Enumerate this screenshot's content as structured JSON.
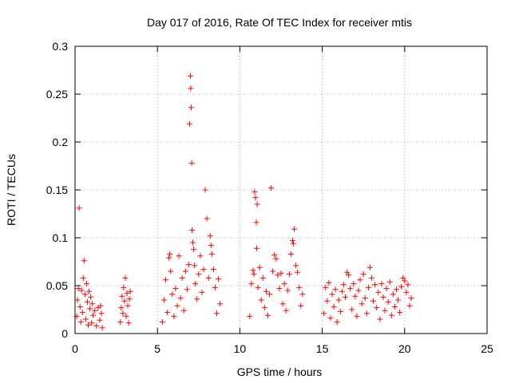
{
  "chart_data": {
    "type": "scatter",
    "title": "Day 017 of 2016, Rate Of TEC Index for receiver mtis",
    "xlabel": "GPS time / hours",
    "ylabel": "ROTI / TECUs",
    "xlim": [
      0,
      25
    ],
    "ylim": [
      0,
      0.3
    ],
    "x_ticks": [
      0,
      5,
      10,
      15,
      20,
      25
    ],
    "x_tick_labels": [
      "0",
      "5",
      "10",
      "15",
      "20",
      "25"
    ],
    "y_ticks": [
      0,
      0.05,
      0.1,
      0.15,
      0.2,
      0.25,
      0.3
    ],
    "y_tick_labels": [
      "0",
      "0.05",
      "0.1",
      "0.15",
      "0.2",
      "0.25",
      "0.3"
    ],
    "grid": true,
    "marker": "+",
    "marker_color": "#ff0000",
    "series": [
      {
        "name": "ROTI",
        "color": "#ff0000",
        "points": [
          [
            0.1,
            0.018
          ],
          [
            0.15,
            0.035
          ],
          [
            0.2,
            0.047
          ],
          [
            0.25,
            0.131
          ],
          [
            0.3,
            0.028
          ],
          [
            0.35,
            0.012
          ],
          [
            0.4,
            0.045
          ],
          [
            0.45,
            0.022
          ],
          [
            0.5,
            0.058
          ],
          [
            0.55,
            0.076
          ],
          [
            0.6,
            0.041
          ],
          [
            0.65,
            0.015
          ],
          [
            0.7,
            0.052
          ],
          [
            0.75,
            0.033
          ],
          [
            0.8,
            0.009
          ],
          [
            0.85,
            0.044
          ],
          [
            0.9,
            0.026
          ],
          [
            0.95,
            0.038
          ],
          [
            1.0,
            0.011
          ],
          [
            1.05,
            0.031
          ],
          [
            1.1,
            0.019
          ],
          [
            1.2,
            0.024
          ],
          [
            1.3,
            0.008
          ],
          [
            1.4,
            0.027
          ],
          [
            1.5,
            0.014
          ],
          [
            1.55,
            0.029
          ],
          [
            1.6,
            0.021
          ],
          [
            1.65,
            0.006
          ],
          [
            2.75,
            0.012
          ],
          [
            2.8,
            0.027
          ],
          [
            2.85,
            0.039
          ],
          [
            2.9,
            0.021
          ],
          [
            2.95,
            0.048
          ],
          [
            3.0,
            0.034
          ],
          [
            3.05,
            0.058
          ],
          [
            3.1,
            0.018
          ],
          [
            3.15,
            0.042
          ],
          [
            3.2,
            0.029
          ],
          [
            3.25,
            0.011
          ],
          [
            3.3,
            0.036
          ],
          [
            3.35,
            0.044
          ],
          [
            5.3,
            0.012
          ],
          [
            5.4,
            0.035
          ],
          [
            5.5,
            0.056
          ],
          [
            5.6,
            0.022
          ],
          [
            5.7,
            0.079
          ],
          [
            5.75,
            0.083
          ],
          [
            5.8,
            0.065
          ],
          [
            5.9,
            0.041
          ],
          [
            6.0,
            0.018
          ],
          [
            6.1,
            0.047
          ],
          [
            6.2,
            0.029
          ],
          [
            6.3,
            0.081
          ],
          [
            6.4,
            0.037
          ],
          [
            6.5,
            0.058
          ],
          [
            6.6,
            0.024
          ],
          [
            6.7,
            0.065
          ],
          [
            6.8,
            0.046
          ],
          [
            6.9,
            0.072
          ],
          [
            6.95,
            0.219
          ],
          [
            7.0,
            0.269
          ],
          [
            7.02,
            0.256
          ],
          [
            7.05,
            0.236
          ],
          [
            7.08,
            0.178
          ],
          [
            7.1,
            0.108
          ],
          [
            7.15,
            0.095
          ],
          [
            7.2,
            0.088
          ],
          [
            7.25,
            0.071
          ],
          [
            7.3,
            0.052
          ],
          [
            7.4,
            0.036
          ],
          [
            7.5,
            0.062
          ],
          [
            7.6,
            0.081
          ],
          [
            7.7,
            0.043
          ],
          [
            7.8,
            0.067
          ],
          [
            7.9,
            0.15
          ],
          [
            8.0,
            0.12
          ],
          [
            8.1,
            0.058
          ],
          [
            8.2,
            0.102
          ],
          [
            8.25,
            0.092
          ],
          [
            8.3,
            0.083
          ],
          [
            8.4,
            0.067
          ],
          [
            8.5,
            0.048
          ],
          [
            8.6,
            0.021
          ],
          [
            8.7,
            0.057
          ],
          [
            8.8,
            0.031
          ],
          [
            10.6,
            0.018
          ],
          [
            10.7,
            0.052
          ],
          [
            10.8,
            0.066
          ],
          [
            10.85,
            0.062
          ],
          [
            10.9,
            0.148
          ],
          [
            10.95,
            0.142
          ],
          [
            11.0,
            0.116
          ],
          [
            11.02,
            0.089
          ],
          [
            11.05,
            0.135
          ],
          [
            11.1,
            0.048
          ],
          [
            11.2,
            0.069
          ],
          [
            11.3,
            0.035
          ],
          [
            11.4,
            0.058
          ],
          [
            11.5,
            0.027
          ],
          [
            11.6,
            0.044
          ],
          [
            11.7,
            0.019
          ],
          [
            11.8,
            0.041
          ],
          [
            11.9,
            0.152
          ],
          [
            12.0,
            0.065
          ],
          [
            12.1,
            0.082
          ],
          [
            12.2,
            0.078
          ],
          [
            12.3,
            0.061
          ],
          [
            12.4,
            0.047
          ],
          [
            12.5,
            0.063
          ],
          [
            12.6,
            0.031
          ],
          [
            12.7,
            0.052
          ],
          [
            12.8,
            0.024
          ],
          [
            12.9,
            0.045
          ],
          [
            13.0,
            0.062
          ],
          [
            13.1,
            0.083
          ],
          [
            13.2,
            0.097
          ],
          [
            13.25,
            0.094
          ],
          [
            13.3,
            0.109
          ],
          [
            13.4,
            0.071
          ],
          [
            13.5,
            0.064
          ],
          [
            13.6,
            0.048
          ],
          [
            13.7,
            0.029
          ],
          [
            13.8,
            0.041
          ],
          [
            15.1,
            0.021
          ],
          [
            15.2,
            0.048
          ],
          [
            15.3,
            0.034
          ],
          [
            15.4,
            0.053
          ],
          [
            15.5,
            0.016
          ],
          [
            15.6,
            0.041
          ],
          [
            15.7,
            0.028
          ],
          [
            15.8,
            0.046
          ],
          [
            15.9,
            0.012
          ],
          [
            16.0,
            0.035
          ],
          [
            16.1,
            0.023
          ],
          [
            16.2,
            0.044
          ],
          [
            16.3,
            0.051
          ],
          [
            16.4,
            0.038
          ],
          [
            16.5,
            0.064
          ],
          [
            16.6,
            0.061
          ],
          [
            16.7,
            0.047
          ],
          [
            16.8,
            0.025
          ],
          [
            16.9,
            0.052
          ],
          [
            17.0,
            0.039
          ],
          [
            17.1,
            0.018
          ],
          [
            17.2,
            0.045
          ],
          [
            17.3,
            0.056
          ],
          [
            17.4,
            0.031
          ],
          [
            17.5,
            0.062
          ],
          [
            17.6,
            0.037
          ],
          [
            17.7,
            0.021
          ],
          [
            17.8,
            0.048
          ],
          [
            17.9,
            0.069
          ],
          [
            18.0,
            0.058
          ],
          [
            18.1,
            0.034
          ],
          [
            18.2,
            0.051
          ],
          [
            18.3,
            0.027
          ],
          [
            18.4,
            0.043
          ],
          [
            18.5,
            0.015
          ],
          [
            18.6,
            0.052
          ],
          [
            18.7,
            0.038
          ],
          [
            18.8,
            0.024
          ],
          [
            18.9,
            0.047
          ],
          [
            19.0,
            0.033
          ],
          [
            19.1,
            0.054
          ],
          [
            19.2,
            0.019
          ],
          [
            19.3,
            0.041
          ],
          [
            19.4,
            0.028
          ],
          [
            19.5,
            0.046
          ],
          [
            19.6,
            0.035
          ],
          [
            19.7,
            0.022
          ],
          [
            19.8,
            0.049
          ],
          [
            19.9,
            0.058
          ],
          [
            20.0,
            0.055
          ],
          [
            20.1,
            0.043
          ],
          [
            20.2,
            0.051
          ],
          [
            20.3,
            0.029
          ],
          [
            20.4,
            0.037
          ]
        ]
      }
    ]
  }
}
